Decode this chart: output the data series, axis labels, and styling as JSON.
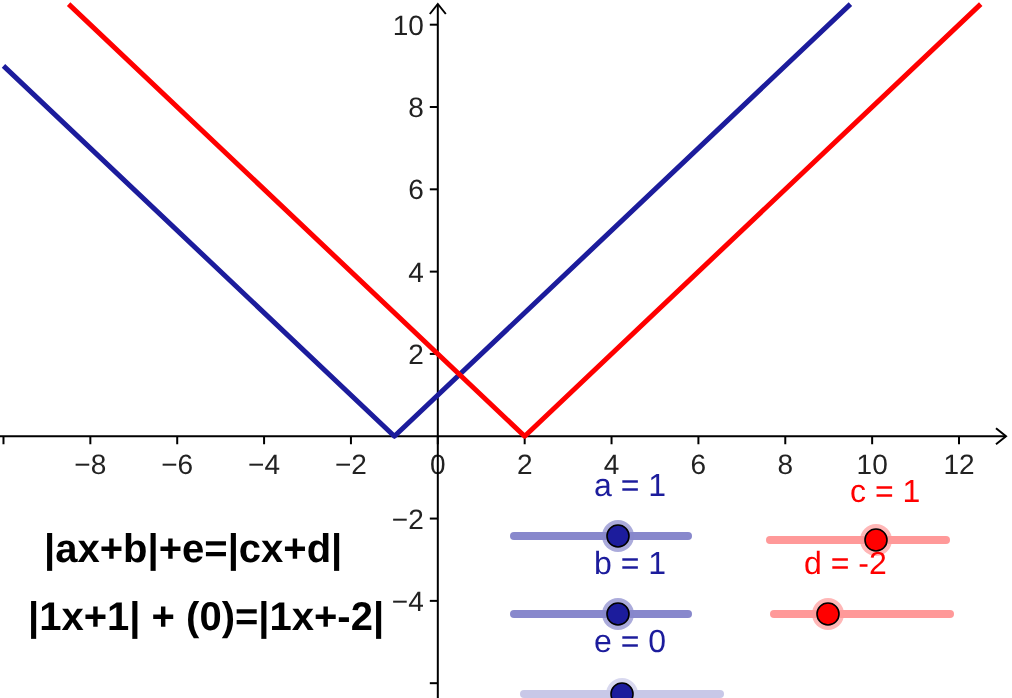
{
  "chart_data": {
    "type": "line",
    "xlim": [
      -10.08,
      13.22
    ],
    "ylim": [
      -6.36,
      10.6
    ],
    "xticks": [
      {
        "value": -10,
        "label": null
      },
      -8,
      -6,
      -4,
      -2,
      0,
      2,
      4,
      6,
      8,
      10,
      12
    ],
    "yticks": [
      {
        "value": -6,
        "label": null
      },
      -4,
      -2,
      2,
      4,
      6,
      8,
      10
    ],
    "marker": "none",
    "line_style": "solid",
    "series": [
      {
        "color": "#1c1c9c",
        "x": [
          -10,
          -1,
          9.5
        ],
        "values": [
          9,
          0,
          10.5
        ]
      },
      {
        "color": "#ff0000",
        "x": [
          -8.5,
          2,
          12.5
        ],
        "values": [
          10.5,
          0,
          10.5
        ]
      }
    ],
    "annotations": [
      "|ax+b|+e=|cx+d|",
      "|1x+1| + (0)=|1x+-2|",
      "a = 1",
      "b = 1",
      "e = 0",
      "c = 1",
      "d = -2"
    ]
  }
}
